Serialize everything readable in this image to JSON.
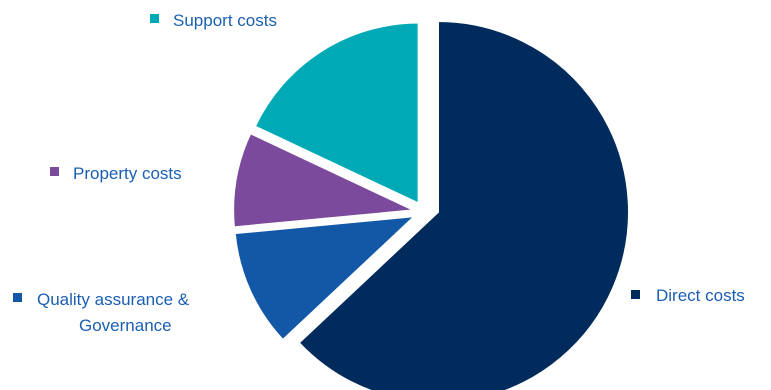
{
  "chart_data": {
    "type": "pie",
    "title": "",
    "slices": [
      {
        "label": "Direct costs",
        "value": 63,
        "color": "#002b5c"
      },
      {
        "label": "Quality assurance & Governance",
        "label_lines": [
          "Quality assurance &",
          "Governance"
        ],
        "value": 10.5,
        "color": "#1358a6"
      },
      {
        "label": "Property costs",
        "value": 8.5,
        "color": "#7c4a9c"
      },
      {
        "label": "Support costs",
        "value": 18,
        "color": "#00a9b6"
      }
    ],
    "start_angle_deg": 0,
    "direction": "clockwise",
    "exploded": true,
    "legend": "labels-beside-slices",
    "label_color": "#1a5fb4"
  }
}
